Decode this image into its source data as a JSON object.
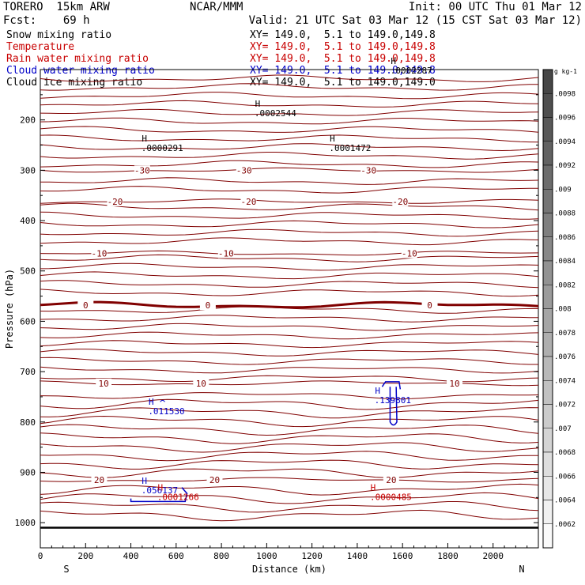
{
  "header": {
    "model": "TORERO  15km ARW",
    "org": "NCAR/MMM",
    "init": "Init: 00 UTC Thu 01 Mar 12",
    "fcst": "Fcst:    69 h",
    "valid": "Valid: 21 UTC Sat 03 Mar 12 (15 CST Sat 03 Mar 12)"
  },
  "legend": [
    {
      "label": "Snow mixing ratio",
      "xy": "XY= 149.0,  5.1 to 149.0,149.8",
      "color": "#000000"
    },
    {
      "label": "Temperature",
      "xy": "XY= 149.0,  5.1 to 149.0,149.8",
      "color": "#c80000"
    },
    {
      "label": "Rain water mixing ratio",
      "xy": "XY= 149.0,  5.1 to 149.0,149.8",
      "color": "#c80000"
    },
    {
      "label": "Cloud water mixing ratio",
      "xy": "XY= 149.0,  5.1 to 149.0,149.8",
      "color": "#0000c8"
    },
    {
      "label": "Cloud ice mixing ratio",
      "xy": "XY= 149.0,  5.1 to 149.0,149.0",
      "color": "#000000"
    }
  ],
  "chart_data": {
    "type": "cross-section contour",
    "xlabel": "Distance (km)",
    "ylabel": "Pressure (hPa)",
    "xlim": [
      0,
      2200
    ],
    "ylim": [
      1050,
      100
    ],
    "x_ticks": [
      0,
      200,
      400,
      600,
      800,
      1000,
      1200,
      1400,
      1600,
      1800,
      2000
    ],
    "y_ticks": [
      200,
      300,
      400,
      500,
      600,
      700,
      800,
      900,
      1000
    ],
    "endpoints": {
      "left": "S",
      "right": "N"
    },
    "temperature_contours": [
      {
        "value": -30,
        "pressure": 300,
        "labels": [
          {
            "text": "-30",
            "x": 450
          },
          {
            "text": "-30",
            "x": 900
          },
          {
            "text": "-30",
            "x": 1450
          }
        ]
      },
      {
        "value": -20,
        "pressure": 362,
        "labels": [
          {
            "text": "-20",
            "x": 330
          },
          {
            "text": "-20",
            "x": 920
          },
          {
            "text": "-20",
            "x": 1590
          }
        ]
      },
      {
        "value": -10,
        "pressure": 465,
        "labels": [
          {
            "text": "-10",
            "x": 260
          },
          {
            "text": "-10",
            "x": 820
          },
          {
            "text": "-10",
            "x": 1630
          }
        ]
      },
      {
        "value": 0,
        "pressure": 568,
        "labels": [
          {
            "text": "0",
            "x": 200
          },
          {
            "text": "0",
            "x": 740
          },
          {
            "text": "0",
            "x": 1720
          }
        ]
      },
      {
        "value": 10,
        "pressure": 723,
        "labels": [
          {
            "text": "10",
            "x": 280
          },
          {
            "text": "10",
            "x": 710
          },
          {
            "text": "10",
            "x": 1830
          }
        ]
      },
      {
        "value": 20,
        "pressure": 915,
        "labels": [
          {
            "text": "20",
            "x": 260
          },
          {
            "text": "20",
            "x": 770
          },
          {
            "text": "20",
            "x": 1550
          }
        ]
      }
    ],
    "surface_pressure": 1010,
    "colorbar": {
      "unit": "g kg-1",
      "ticks": [
        ".0098",
        ".0096",
        ".0094",
        ".0092",
        ".009",
        ".0088",
        ".0086",
        ".0084",
        ".0082",
        ".008",
        ".0078",
        ".0076",
        ".0074",
        ".0072",
        ".007",
        ".0068",
        ".0066",
        ".0064",
        ".0062"
      ]
    },
    "maxima": [
      {
        "symbol": "H",
        "value": ".0002544",
        "x": 960,
        "p": 193,
        "color": "#000000"
      },
      {
        "symbol": "H",
        "value": ".0000291",
        "x": 460,
        "p": 262,
        "color": "#000000"
      },
      {
        "symbol": "H",
        "value": ".0001472",
        "x": 1290,
        "p": 262,
        "color": "#000000"
      },
      {
        "symbol": "H",
        "value": ".0002287",
        "x": 1560,
        "p": 108,
        "color": "#000000"
      },
      {
        "symbol": "H",
        "value": ".011530",
        "x": 490,
        "p": 785,
        "color": "#0000c8"
      },
      {
        "symbol": "H",
        "value": ".139801",
        "x": 1490,
        "p": 763,
        "color": "#0000c8"
      },
      {
        "symbol": "H",
        "value": ".056137",
        "x": 460,
        "p": 942,
        "color": "#0000c8"
      },
      {
        "symbol": "H",
        "value": ".0001266",
        "x": 530,
        "p": 955,
        "color": "#c80000"
      },
      {
        "symbol": "H",
        "value": ".0000485",
        "x": 1470,
        "p": 955,
        "color": "#c80000"
      }
    ]
  }
}
